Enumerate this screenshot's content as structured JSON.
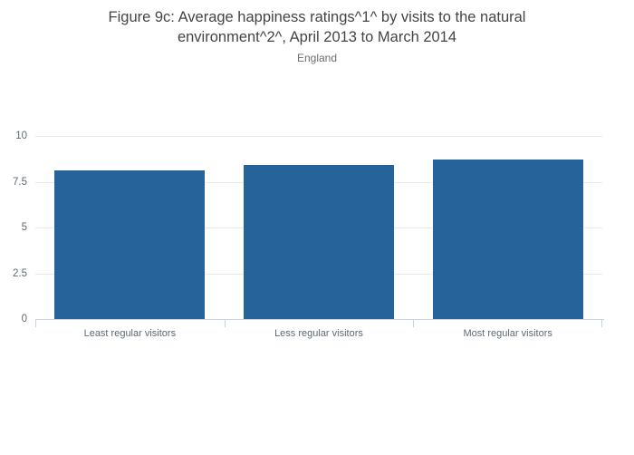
{
  "title": "Figure 9c: Average happiness ratings^1^ by visits to the natural environment^2^, April 2013 to March 2014",
  "subtitle": "England",
  "chart_data": {
    "type": "bar",
    "categories": [
      "Least regular visitors",
      "Less regular visitors",
      "Most regular visitors"
    ],
    "values": [
      8.1,
      8.4,
      8.7
    ],
    "title": "Figure 9c: Average happiness ratings^1^ by visits to the natural environment^2^, April 2013 to March 2014",
    "subtitle": "England",
    "xlabel": "",
    "ylabel": "",
    "ylim": [
      0,
      10
    ],
    "yticks": [
      0,
      2.5,
      5,
      7.5,
      10
    ],
    "grid": true,
    "legend": false,
    "legend_position": "none"
  },
  "colors": {
    "bar": "#25639a",
    "grid": "#e9e9e9",
    "axis": "#c8d4e3",
    "title": "#444444",
    "subtitle": "#6e6e6e",
    "tick_label": "#5f6975",
    "background": "#ffffff"
  }
}
